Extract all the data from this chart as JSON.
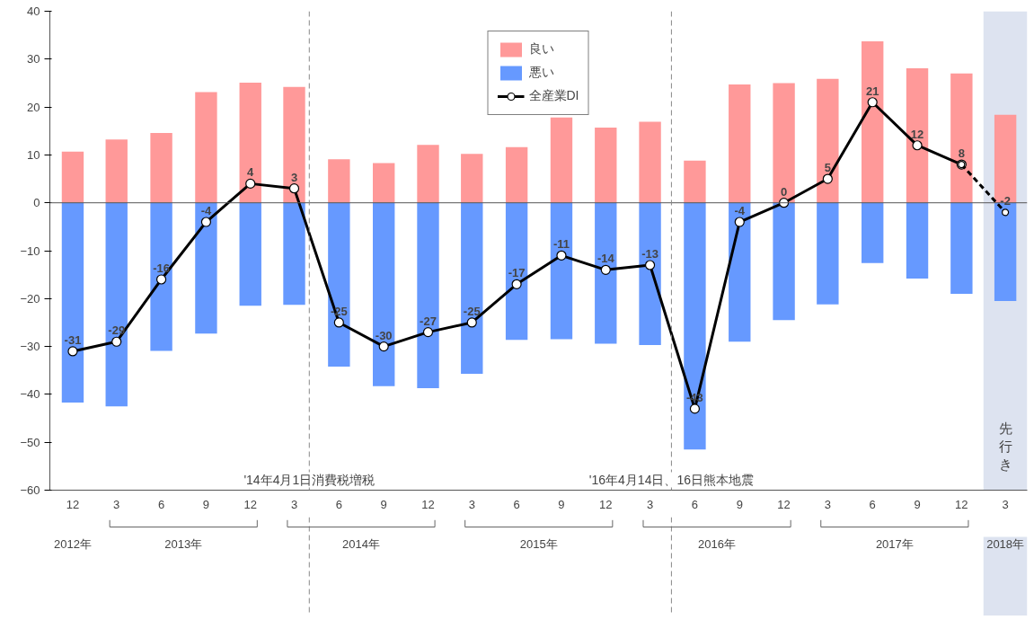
{
  "chart_data": {
    "type": "bar",
    "stacked": true,
    "xlim": [
      "2012-10-15",
      "2018-04-15"
    ],
    "xticks": [
      {
        "value": "2012-12",
        "label": "12"
      },
      {
        "value": "2013-03",
        "label": "3"
      },
      {
        "value": "2013-06",
        "label": "6"
      },
      {
        "value": "2013-09",
        "label": "9"
      },
      {
        "value": "2013-12",
        "label": "12"
      },
      {
        "value": "2014-03",
        "label": "3"
      },
      {
        "value": "2014-06",
        "label": "6"
      },
      {
        "value": "2014-09",
        "label": "9"
      },
      {
        "value": "2014-12",
        "label": "12"
      },
      {
        "value": "2015-03",
        "label": "3"
      },
      {
        "value": "2015-06",
        "label": "6"
      },
      {
        "value": "2015-09",
        "label": "9"
      },
      {
        "value": "2015-12",
        "label": "12"
      },
      {
        "value": "2016-03",
        "label": "3"
      },
      {
        "value": "2016-06",
        "label": "6"
      },
      {
        "value": "2016-09",
        "label": "9"
      },
      {
        "value": "2016-12",
        "label": "12"
      },
      {
        "value": "2017-03",
        "label": "3"
      },
      {
        "value": "2017-06",
        "label": "6"
      },
      {
        "value": "2017-09",
        "label": "9"
      },
      {
        "value": "2017-12",
        "label": "12"
      },
      {
        "value": "2018-03",
        "label": "3"
      }
    ],
    "x": [
      "2012-12",
      "2013-03",
      "2013-06",
      "2013-09",
      "2013-12",
      "2014-03",
      "2014-06",
      "2014-09",
      "2014-12",
      "2015-03",
      "2015-06",
      "2015-09",
      "2015-12",
      "2016-03",
      "2016-06",
      "2016-09",
      "2016-12",
      "2017-03",
      "2017-06",
      "2017-09",
      "2017-12",
      "2018-03"
    ],
    "ylim": [
      -60,
      40
    ],
    "yticks": [
      -60,
      -50,
      -40,
      -30,
      -20,
      -10,
      0,
      10,
      20,
      30,
      40
    ],
    "grid": false,
    "legend": "top",
    "series": [
      {
        "name": "良い",
        "color": "#ff9999",
        "values": [
          10.7,
          13.2,
          14.6,
          23.1,
          25.1,
          24.2,
          9.1,
          8.3,
          12.1,
          10.2,
          11.6,
          17.8,
          15.7,
          16.9,
          8.8,
          24.7,
          25.0,
          25.9,
          33.7,
          28.1,
          27.0,
          18.4
        ]
      },
      {
        "name": "悪い",
        "color": "#6699ff",
        "values": [
          -41.7,
          -42.5,
          -30.9,
          -27.3,
          -21.5,
          -21.3,
          -34.2,
          -38.3,
          -38.7,
          -35.7,
          -28.6,
          -28.5,
          -29.4,
          -29.7,
          -51.5,
          -29.0,
          -24.5,
          -21.2,
          -12.6,
          -15.8,
          -19.0,
          -20.5
        ]
      },
      {
        "name": "全産業DI",
        "type": "line",
        "color": "#000000",
        "marker": "circle",
        "line_style": "solid",
        "values": [
          -31,
          -29,
          -16,
          -4,
          4,
          3,
          -25,
          -30,
          -27,
          -25,
          -17,
          -11,
          -14,
          -13,
          -43,
          -4,
          0,
          5,
          21,
          12,
          8,
          null
        ],
        "value_labels": [
          "-31",
          "-29",
          "-16",
          "-4",
          "4",
          "3",
          "-25",
          "-30",
          "-27",
          "-25",
          "-17",
          "-11",
          "-14",
          "-13",
          "-43",
          "-4",
          "0",
          "5",
          "21",
          "12",
          "8",
          null
        ]
      },
      {
        "type": "line",
        "color": "#000000",
        "marker": "circle",
        "line_style": "dashed",
        "values": [
          null,
          null,
          null,
          null,
          null,
          null,
          null,
          null,
          null,
          null,
          null,
          null,
          null,
          null,
          null,
          null,
          null,
          null,
          null,
          null,
          8,
          -2
        ],
        "value_labels": [
          null,
          null,
          null,
          null,
          null,
          null,
          null,
          null,
          null,
          null,
          null,
          null,
          null,
          null,
          null,
          null,
          null,
          null,
          null,
          null,
          null,
          "-2"
        ]
      }
    ],
    "ref_lines": [
      {
        "axis": "y",
        "value": 0,
        "color": "#555555",
        "line_style": "solid"
      },
      {
        "axis": "x",
        "value": "2014-04-01",
        "label": "'14年4月1日消費税増税",
        "color": "#888888",
        "line_style": "dashed"
      },
      {
        "axis": "x",
        "value": "2016-04-14",
        "label": "'16年4月14日、16日熊本地震",
        "color": "#888888",
        "line_style": "dashed"
      }
    ],
    "bands": [
      {
        "axis": "x",
        "from": "2018-01-15",
        "to": "2018-04-15",
        "label": "先行き",
        "color": "#dde3f0"
      }
    ],
    "annotations": [
      "2012年",
      "2013年",
      "2014年",
      "2015年",
      "2016年",
      "2017年",
      "2018年"
    ]
  }
}
